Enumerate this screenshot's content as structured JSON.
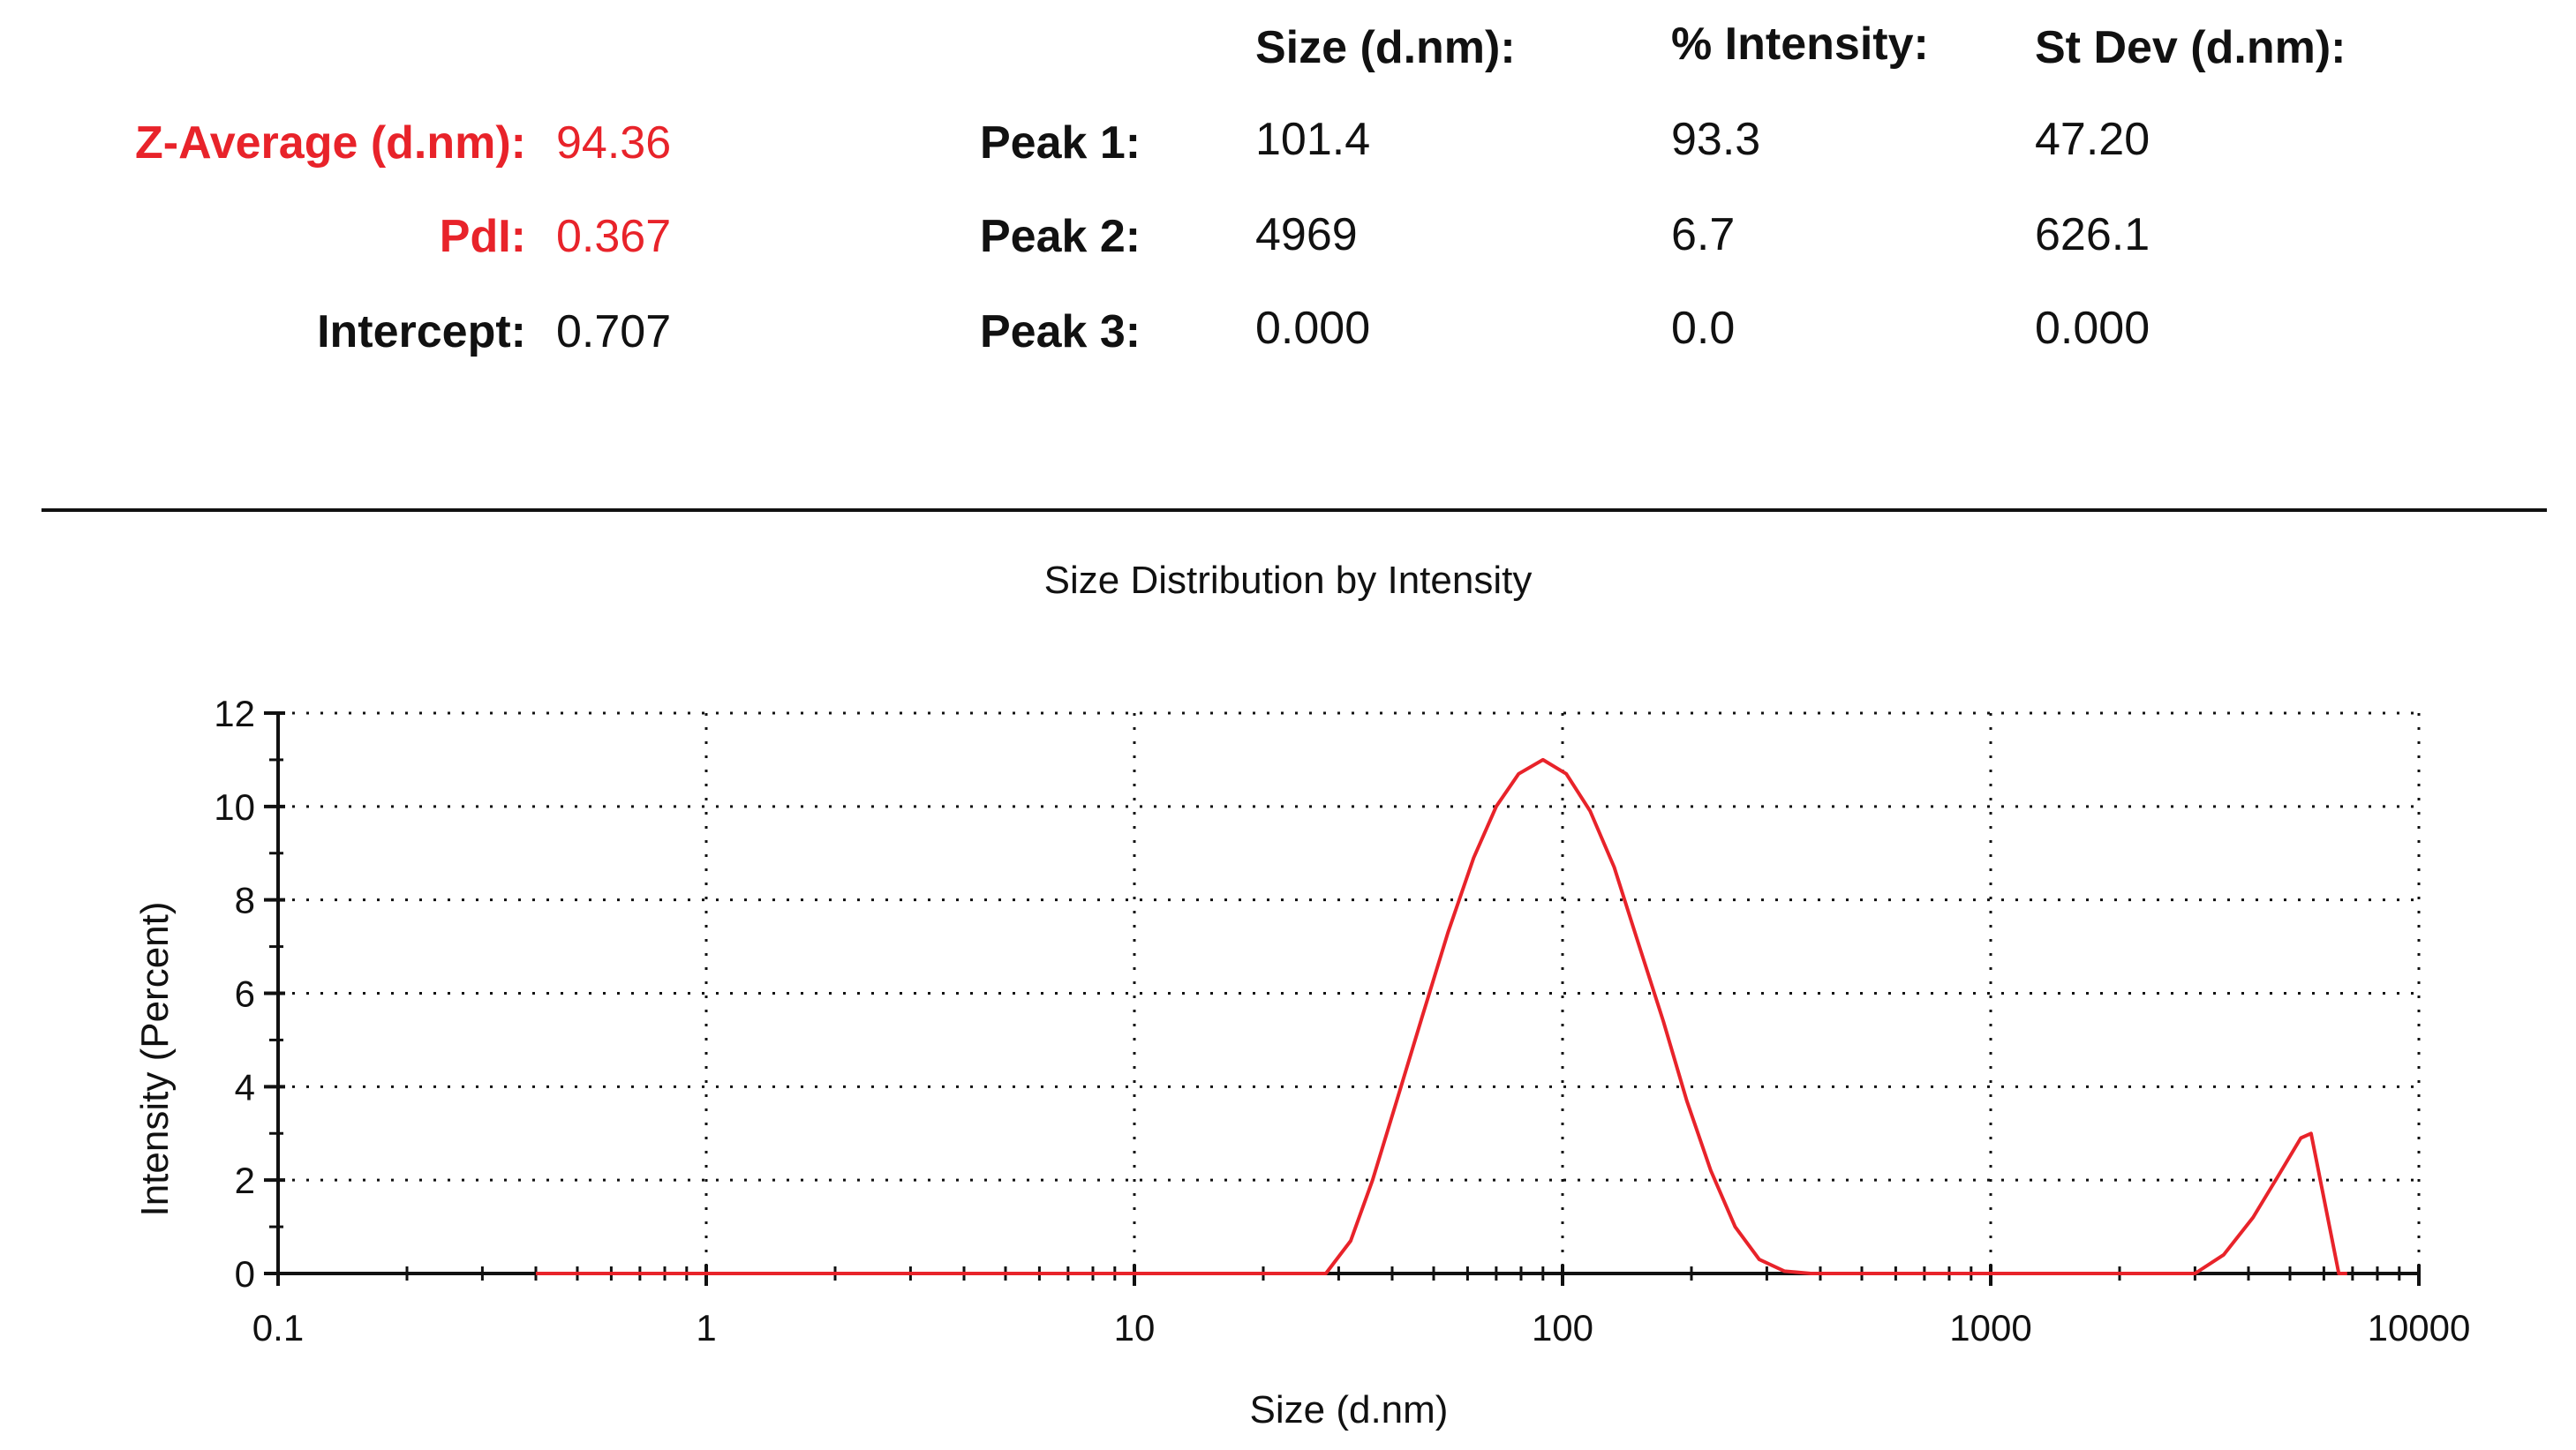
{
  "summary": {
    "z_average": {
      "label": "Z-Average (d.nm):",
      "value": "94.36"
    },
    "pdi": {
      "label": "PdI:",
      "value": "0.367"
    },
    "intercept": {
      "label": "Intercept:",
      "value": "0.707"
    }
  },
  "peaks_table": {
    "headers": {
      "size": "Size (d.nm):",
      "intensity": "% Intensity:",
      "stdev": "St Dev (d.nm):"
    },
    "rows": [
      {
        "label": "Peak 1:",
        "size": "101.4",
        "intensity": "93.3",
        "stdev": "47.20"
      },
      {
        "label": "Peak 2:",
        "size": "4969",
        "intensity": "6.7",
        "stdev": "626.1"
      },
      {
        "label": "Peak 3:",
        "size": "0.000",
        "intensity": "0.0",
        "stdev": "0.000"
      }
    ]
  },
  "colors": {
    "highlight": "#e8232a",
    "series": "#e8232a",
    "axis": "#111111",
    "grid": "#111111"
  },
  "chart_data": {
    "type": "line",
    "title": "Size Distribution by Intensity",
    "xlabel": "Size (d.nm)",
    "ylabel": "Intensity (Percent)",
    "x_scale": "log",
    "xlim": [
      0.1,
      10000
    ],
    "ylim": [
      0,
      12
    ],
    "x_ticks": [
      0.1,
      1,
      10,
      100,
      1000,
      10000
    ],
    "x_tick_labels": [
      "0.1",
      "1",
      "10",
      "100",
      "1000",
      "10000"
    ],
    "y_ticks": [
      0,
      2,
      4,
      6,
      8,
      10,
      12
    ],
    "y_tick_labels": [
      "0",
      "2",
      "4",
      "6",
      "8",
      "10",
      "12"
    ],
    "grid": true,
    "series": [
      {
        "points": [
          [
            0.4,
            0
          ],
          [
            28,
            0
          ],
          [
            32,
            0.7
          ],
          [
            36,
            2.0
          ],
          [
            41,
            3.7
          ],
          [
            47,
            5.5
          ],
          [
            54,
            7.3
          ],
          [
            62,
            8.9
          ],
          [
            70,
            10.0
          ],
          [
            79,
            10.7
          ],
          [
            90,
            11.0
          ],
          [
            102,
            10.7
          ],
          [
            116,
            9.9
          ],
          [
            132,
            8.7
          ],
          [
            150,
            7.1
          ],
          [
            172,
            5.4
          ],
          [
            195,
            3.7
          ],
          [
            222,
            2.2
          ],
          [
            253,
            1.0
          ],
          [
            288,
            0.3
          ],
          [
            330,
            0.05
          ],
          [
            380,
            0
          ],
          [
            3000,
            0
          ],
          [
            3500,
            0.4
          ],
          [
            4100,
            1.2
          ],
          [
            4700,
            2.1
          ],
          [
            5300,
            2.9
          ],
          [
            5600,
            3.0
          ],
          [
            6500,
            0
          ],
          [
            6800,
            0
          ]
        ]
      }
    ]
  }
}
